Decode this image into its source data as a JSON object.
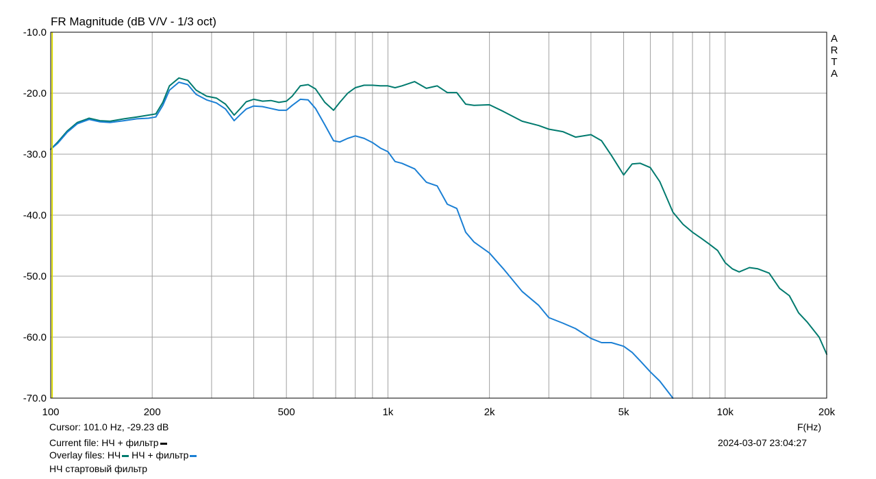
{
  "chart_data": {
    "type": "line",
    "title": "FR Magnitude (dB V/V - 1/3 oct)",
    "xlabel": "F(Hz)",
    "x_scale": "log",
    "xlim": [
      100,
      20000
    ],
    "ylim": [
      -70,
      -10
    ],
    "grid": true,
    "x_ticks": [
      {
        "value": 100,
        "label": "100"
      },
      {
        "value": 200,
        "label": "200"
      },
      {
        "value": 500,
        "label": "500"
      },
      {
        "value": 1000,
        "label": "1k"
      },
      {
        "value": 2000,
        "label": "2k"
      },
      {
        "value": 5000,
        "label": "5k"
      },
      {
        "value": 10000,
        "label": "10k"
      },
      {
        "value": 20000,
        "label": "20k"
      }
    ],
    "y_ticks": [
      {
        "value": -10,
        "label": "-10.0"
      },
      {
        "value": -20,
        "label": "-20.0"
      },
      {
        "value": -30,
        "label": "-30.0"
      },
      {
        "value": -40,
        "label": "-40.0"
      },
      {
        "value": -50,
        "label": "-50.0"
      },
      {
        "value": -60,
        "label": "-60.0"
      },
      {
        "value": -70,
        "label": "-70.0"
      }
    ],
    "cursor_frequency": 101.0,
    "series": [
      {
        "name": "НЧ",
        "color": "#007a6e",
        "x": [
          100,
          105,
          112,
          120,
          130,
          140,
          150,
          165,
          180,
          195,
          205,
          215,
          225,
          240,
          255,
          270,
          290,
          310,
          330,
          350,
          365,
          380,
          400,
          425,
          450,
          475,
          500,
          520,
          550,
          580,
          610,
          650,
          690,
          720,
          760,
          800,
          850,
          900,
          950,
          1000,
          1050,
          1100,
          1200,
          1300,
          1400,
          1500,
          1600,
          1700,
          1800,
          2000,
          2200,
          2500,
          2800,
          3000,
          3300,
          3600,
          4000,
          4300,
          4600,
          5000,
          5300,
          5600,
          6000,
          6400,
          7000,
          7500,
          8000,
          8500,
          9000,
          9500,
          10000,
          10500,
          11000,
          11800,
          12500,
          13500,
          14500,
          15500,
          16500,
          17500,
          19000,
          20000
        ],
        "y": [
          -29.2,
          -28.0,
          -26.2,
          -24.8,
          -24.1,
          -24.5,
          -24.6,
          -24.2,
          -23.9,
          -23.6,
          -23.4,
          -21.5,
          -18.8,
          -17.5,
          -17.9,
          -19.5,
          -20.5,
          -20.8,
          -21.8,
          -23.6,
          -22.5,
          -21.4,
          -21.0,
          -21.3,
          -21.2,
          -21.5,
          -21.3,
          -20.5,
          -18.8,
          -18.6,
          -19.3,
          -21.5,
          -22.8,
          -21.5,
          -20.0,
          -19.1,
          -18.7,
          -18.7,
          -18.8,
          -18.8,
          -19.1,
          -18.8,
          -18.1,
          -19.2,
          -18.8,
          -19.9,
          -19.9,
          -21.8,
          -22.0,
          -21.9,
          -23.0,
          -24.6,
          -25.3,
          -25.9,
          -26.3,
          -27.2,
          -26.8,
          -27.8,
          -30.2,
          -33.4,
          -31.6,
          -31.5,
          -32.2,
          -34.5,
          -39.5,
          -41.5,
          -42.8,
          -43.8,
          -44.8,
          -45.8,
          -47.8,
          -48.8,
          -49.3,
          -48.6,
          -48.8,
          -49.5,
          -52.0,
          -53.2,
          -56.0,
          -57.5,
          -60.0,
          -62.8
        ]
      },
      {
        "name": "НЧ + фильтр",
        "color": "#1a7fd4",
        "x": [
          100,
          105,
          112,
          120,
          130,
          140,
          150,
          165,
          180,
          195,
          205,
          215,
          225,
          240,
          255,
          270,
          290,
          310,
          330,
          350,
          365,
          380,
          400,
          425,
          450,
          475,
          500,
          520,
          550,
          580,
          610,
          650,
          690,
          720,
          760,
          800,
          850,
          900,
          950,
          1000,
          1050,
          1100,
          1200,
          1300,
          1400,
          1500,
          1600,
          1700,
          1800,
          2000,
          2200,
          2500,
          2800,
          3000,
          3300,
          3600,
          4000,
          4300,
          4600,
          5000,
          5300,
          5600,
          6000,
          6400,
          7000
        ],
        "y": [
          -29.2,
          -28.2,
          -26.4,
          -25.0,
          -24.3,
          -24.7,
          -24.8,
          -24.5,
          -24.2,
          -24.1,
          -23.9,
          -22.0,
          -19.5,
          -18.2,
          -18.6,
          -20.2,
          -21.1,
          -21.6,
          -22.6,
          -24.5,
          -23.5,
          -22.6,
          -22.1,
          -22.2,
          -22.5,
          -22.8,
          -22.8,
          -22.0,
          -21.0,
          -21.1,
          -22.5,
          -25.2,
          -27.8,
          -28.0,
          -27.4,
          -27.0,
          -27.4,
          -28.1,
          -29.0,
          -29.6,
          -31.2,
          -31.5,
          -32.4,
          -34.6,
          -35.2,
          -38.2,
          -38.9,
          -42.8,
          -44.4,
          -46.2,
          -48.8,
          -52.5,
          -54.8,
          -56.8,
          -57.7,
          -58.6,
          -60.2,
          -60.9,
          -60.9,
          -61.5,
          -62.5,
          -63.9,
          -65.7,
          -67.2,
          -70.0
        ]
      }
    ]
  },
  "header": {
    "title": "FR Magnitude (dB V/V - 1/3 oct)",
    "brand_letters": [
      "A",
      "R",
      "T",
      "A"
    ]
  },
  "footer": {
    "x_axis_label": "F(Hz)",
    "cursor": "Cursor: 101.0 Hz, -29.23 dB",
    "current_file_label": "Current file: НЧ + фильтр",
    "current_file_color": "#000000",
    "overlay_label": "Overlay files:",
    "overlay_1": "НЧ",
    "overlay_1_color": "#007a6e",
    "overlay_2": "НЧ + фильтр",
    "overlay_2_color": "#1a7fd4",
    "overlay_3": "НЧ стартовый фильтр",
    "timestamp": "2024-03-07  23:04:27"
  },
  "colors": {
    "grid": "#a0a0a0",
    "cursor_line": "#d8d800"
  }
}
